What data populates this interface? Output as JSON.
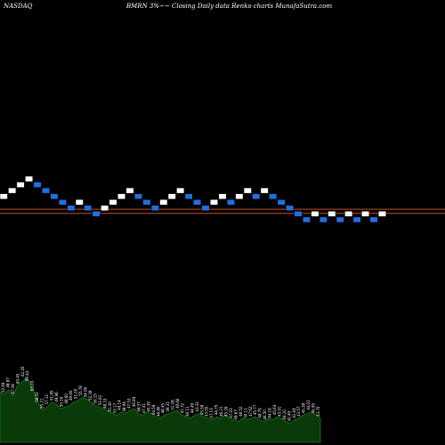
{
  "header": {
    "exchange": "NASDAQ",
    "subtitle": "BMRN  3%~~  Closing Daily data  Renko  charts MunafaSutra.com"
  },
  "colors": {
    "background": "#000000",
    "up_brick": "#ffffff",
    "down_brick": "#1f6fe0",
    "brick_edge": "#000000",
    "price_line": "#c8501e",
    "volume_fill": "#0a3a0a",
    "volume_edge": "#1a7a1a",
    "label": "#ffffff"
  },
  "chart_data": {
    "type": "renko",
    "brick_size": "3%",
    "bricks": [
      {
        "dir": "up",
        "level": 13
      },
      {
        "dir": "up",
        "level": 14
      },
      {
        "dir": "up",
        "level": 15
      },
      {
        "dir": "up",
        "level": 16
      },
      {
        "dir": "down",
        "level": 15
      },
      {
        "dir": "down",
        "level": 14
      },
      {
        "dir": "down",
        "level": 13
      },
      {
        "dir": "down",
        "level": 12
      },
      {
        "dir": "down",
        "level": 11
      },
      {
        "dir": "up",
        "level": 12
      },
      {
        "dir": "down",
        "level": 11
      },
      {
        "dir": "down",
        "level": 10
      },
      {
        "dir": "up",
        "level": 11
      },
      {
        "dir": "up",
        "level": 12
      },
      {
        "dir": "up",
        "level": 13
      },
      {
        "dir": "up",
        "level": 14
      },
      {
        "dir": "down",
        "level": 13
      },
      {
        "dir": "down",
        "level": 12
      },
      {
        "dir": "down",
        "level": 11
      },
      {
        "dir": "up",
        "level": 12
      },
      {
        "dir": "up",
        "level": 13
      },
      {
        "dir": "up",
        "level": 14
      },
      {
        "dir": "down",
        "level": 13
      },
      {
        "dir": "down",
        "level": 12
      },
      {
        "dir": "down",
        "level": 11
      },
      {
        "dir": "up",
        "level": 12
      },
      {
        "dir": "up",
        "level": 13
      },
      {
        "dir": "down",
        "level": 12
      },
      {
        "dir": "up",
        "level": 13
      },
      {
        "dir": "up",
        "level": 14
      },
      {
        "dir": "down",
        "level": 13
      },
      {
        "dir": "up",
        "level": 14
      },
      {
        "dir": "down",
        "level": 13
      },
      {
        "dir": "down",
        "level": 12
      },
      {
        "dir": "down",
        "level": 11
      },
      {
        "dir": "down",
        "level": 10
      },
      {
        "dir": "down",
        "level": 9
      },
      {
        "dir": "up",
        "level": 10
      },
      {
        "dir": "down",
        "level": 9
      },
      {
        "dir": "up",
        "level": 10
      },
      {
        "dir": "down",
        "level": 9
      },
      {
        "dir": "up",
        "level": 10
      },
      {
        "dir": "down",
        "level": 9
      },
      {
        "dir": "up",
        "level": 10
      },
      {
        "dir": "down",
        "level": 9
      },
      {
        "dir": "up",
        "level": 10
      }
    ],
    "price_lines": [
      10.4,
      9.7
    ],
    "volume": [
      62,
      60,
      66,
      58,
      71,
      75,
      80,
      74,
      62,
      48,
      40,
      45,
      50,
      48,
      42,
      44,
      46,
      50,
      52,
      56,
      54,
      50,
      46,
      44,
      42,
      40,
      36,
      34,
      38,
      36,
      40,
      42,
      36,
      34,
      38,
      36,
      32,
      30,
      34,
      36,
      38,
      40,
      34,
      32,
      30,
      34,
      36,
      32,
      30,
      28,
      32,
      30,
      34,
      30,
      28,
      26,
      30,
      28,
      30,
      32,
      28,
      26,
      30,
      28,
      32,
      30,
      26,
      24,
      28,
      30,
      34,
      36,
      38,
      34,
      30
    ],
    "volume_labels": [
      "52.69",
      "48.87",
      "47.58",
      "60.45",
      "62.45",
      "59.44",
      "63.20",
      "58.52",
      "55.21",
      "57.12",
      "51.85",
      "49.96",
      "50.16",
      "48.60",
      "49.60",
      "51.00",
      "55.78",
      "54.06",
      "52.39",
      "50.15",
      "53.02",
      "48.10",
      "51.30",
      "53.17",
      "49.14",
      "48.94",
      "47.53",
      "46.84",
      "48.37",
      "47.41",
      "45.39",
      "44.58",
      "46.80",
      "48.45",
      "49.31",
      "51.28",
      "49.66",
      "47.72",
      "46.11",
      "44.49",
      "43.32",
      "45.58",
      "43.55",
      "47.13",
      "44.75",
      "46.21",
      "45.26",
      "47.03",
      "49.67",
      "48.52",
      "50.11",
      "47.62",
      "45.77",
      "48.79",
      "46.50",
      "44.18",
      "45.64",
      "43.91",
      "44.10",
      "42.49",
      "41.64",
      "43.57",
      "45.38",
      "44.01",
      "45.95",
      "43.70"
    ]
  }
}
